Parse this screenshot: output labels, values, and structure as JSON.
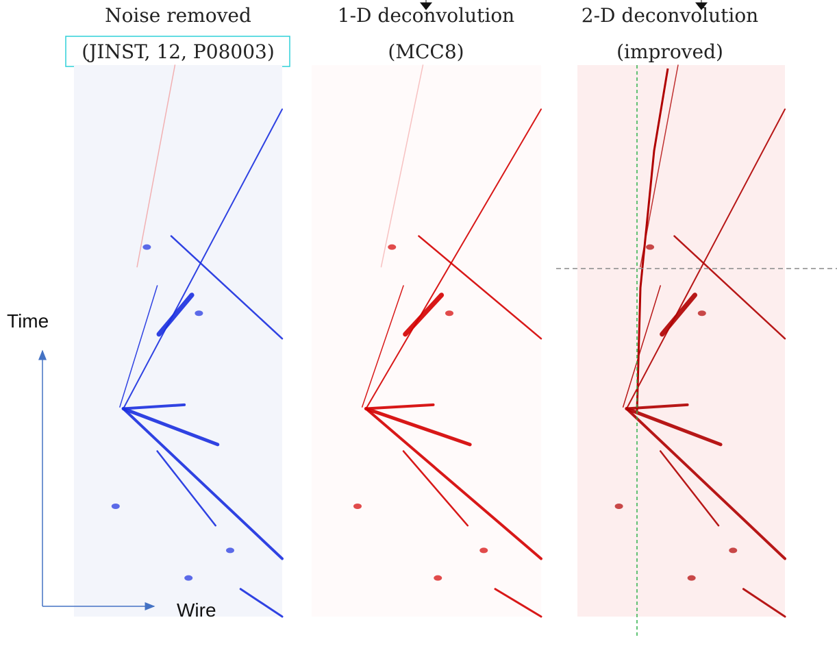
{
  "panels": [
    {
      "title": [
        "Noise removed",
        "(JINST, 12, P08003)"
      ]
    },
    {
      "title": [
        "1-D deconvolution",
        "(MCC8)"
      ]
    },
    {
      "title": [
        "2-D deconvolution",
        "(improved)"
      ]
    }
  ],
  "axes": {
    "y_label": "Time",
    "x_label": "Wire"
  }
}
